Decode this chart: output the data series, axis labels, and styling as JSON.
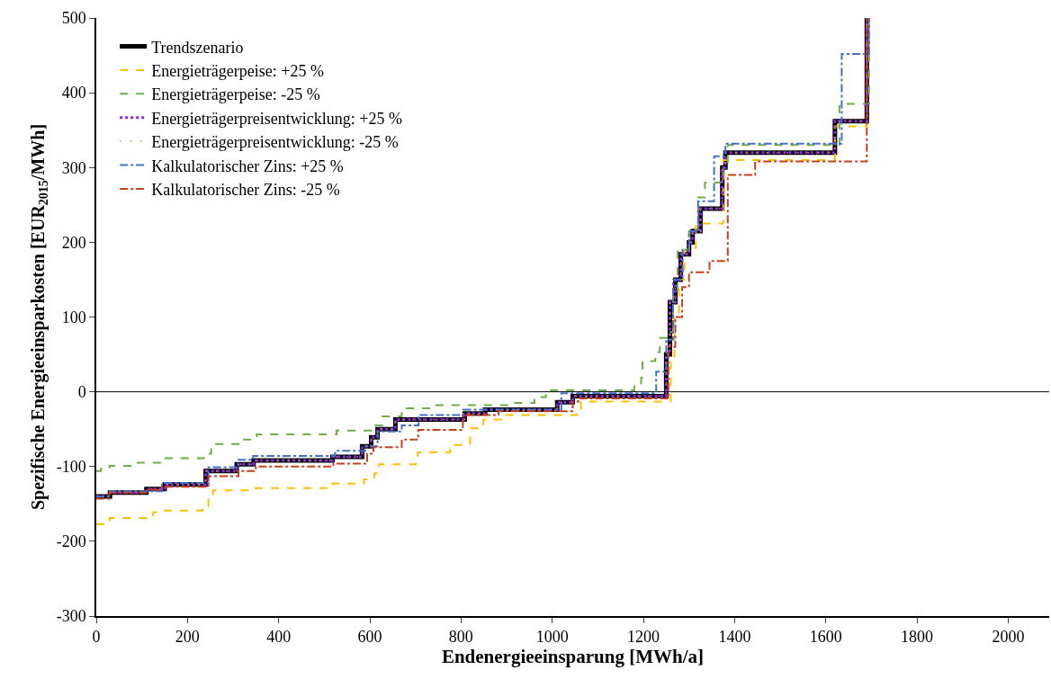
{
  "chart_data": {
    "type": "step",
    "xlabel": "Endenergieeinsparung [MWh/a]",
    "ylabel": "Spezifische Energieeinsparkosten [EUR$_{2015}$/MWh]",
    "xlim": [
      0,
      2090
    ],
    "xticks": [
      0,
      200,
      400,
      600,
      800,
      1000,
      1200,
      1400,
      1600,
      1800,
      2000
    ],
    "ylim": [
      -300,
      500
    ],
    "yticks": [
      -300,
      -200,
      -100,
      0,
      100,
      200,
      300,
      400,
      500
    ],
    "grid": false,
    "legend": "top left",
    "ref_lines": [
      {
        "axis": "y",
        "value": 0,
        "color": "#000000",
        "line_style": "solid"
      }
    ],
    "series": [
      {
        "name": "Trendszenario",
        "color": "#000000",
        "line_style": "solid",
        "x": [
          0,
          30,
          110,
          150,
          240,
          308,
          345,
          518,
          583,
          603,
          617,
          656,
          808,
          853,
          1011,
          1045,
          1250,
          1258,
          1270,
          1282,
          1300,
          1308,
          1325,
          1373,
          1380,
          1620,
          1690
        ],
        "values": [
          -140,
          -135,
          -130,
          -124,
          -106,
          -97,
          -92,
          -87,
          -73,
          -61,
          -50,
          -37,
          -29,
          -24,
          -14,
          -6,
          50,
          120,
          150,
          184,
          200,
          215,
          245,
          300,
          320,
          362,
          500
        ]
      },
      {
        "name": "Energieträgerpeise: +25 %",
        "color": "#ffc000",
        "line_style": "dashed",
        "x": [
          0,
          29,
          110,
          125,
          144,
          233,
          246,
          256,
          344,
          518,
          587,
          610,
          620,
          701,
          705,
          776,
          820,
          849,
          889,
          1054,
          1063,
          1260,
          1268,
          1278,
          1290,
          1315,
          1375,
          1620,
          1690
        ],
        "values": [
          -177,
          -169,
          -165,
          -161,
          -159,
          -153,
          -141,
          -132,
          -129,
          -123,
          -117,
          -109,
          -97,
          -86,
          -81,
          -71,
          -49,
          -37,
          -31,
          -25,
          -13,
          40,
          100,
          150,
          190,
          225,
          310,
          355,
          500
        ]
      },
      {
        "name": "Energieträgerpeise: -25 %",
        "color": "#70ad47",
        "line_style": "dashed",
        "x": [
          0,
          10,
          29,
          91,
          147,
          236,
          252,
          258,
          312,
          352,
          527,
          603,
          628,
          670,
          746,
          909,
          961,
          971,
          986,
          1180,
          1195,
          1198,
          1226,
          1236,
          1255,
          1265,
          1275,
          1300,
          1320,
          1335,
          1375,
          1385,
          1630,
          1695
        ],
        "values": [
          -106,
          -103,
          -99,
          -95,
          -89,
          -83,
          -75,
          -70,
          -64,
          -57,
          -52,
          -45,
          -33,
          -22,
          -18,
          -15,
          -11,
          -7,
          2,
          7,
          19,
          41,
          53,
          72,
          80,
          130,
          190,
          215,
          260,
          280,
          300,
          330,
          385,
          500
        ]
      },
      {
        "name": "Energieträgerpreisentwicklung: +25 %",
        "color": "#8a2be2",
        "line_style": "dotted",
        "x": [
          0,
          30,
          110,
          150,
          240,
          308,
          345,
          518,
          583,
          603,
          617,
          656,
          808,
          853,
          1011,
          1045,
          1250,
          1258,
          1270,
          1282,
          1300,
          1308,
          1325,
          1373,
          1380,
          1620,
          1690
        ],
        "values": [
          -140,
          -135,
          -130,
          -124,
          -106,
          -97,
          -92,
          -87,
          -73,
          -61,
          -50,
          -37,
          -29,
          -24,
          -14,
          -6,
          50,
          120,
          150,
          184,
          200,
          215,
          245,
          300,
          320,
          362,
          500
        ]
      },
      {
        "name": "Energieträgerpreisentwicklung: -25 %",
        "color": "#f4894b",
        "line_style": "dotted",
        "x": [
          0,
          30,
          110,
          150,
          240,
          308,
          345,
          518,
          583,
          603,
          617,
          656,
          808,
          853,
          1011,
          1045,
          1250,
          1258,
          1270,
          1282,
          1300,
          1308,
          1325,
          1373,
          1380,
          1620,
          1690
        ],
        "values": [
          -140,
          -135,
          -130,
          -124,
          -106,
          -97,
          -92,
          -87,
          -73,
          -61,
          -50,
          -37,
          -29,
          -24,
          -14,
          -6,
          50,
          120,
          150,
          184,
          200,
          215,
          245,
          300,
          320,
          362,
          500
        ]
      },
      {
        "name": "Kalkulatorischer Zins: +25 %",
        "color": "#4472c4",
        "line_style": "dashdot",
        "x": [
          0,
          30,
          144,
          246,
          312,
          344,
          524,
          590,
          617,
          670,
          707,
          805,
          1020,
          1228,
          1250,
          1265,
          1286,
          1300,
          1320,
          1355,
          1380,
          1635,
          1695
        ],
        "values": [
          -140,
          -133,
          -122,
          -101,
          -91,
          -86,
          -79,
          -73,
          -53,
          -45,
          -31,
          -24,
          -2,
          27,
          70,
          150,
          190,
          215,
          255,
          315,
          332,
          452,
          500
        ]
      },
      {
        "name": "Kalkulatorischer Zins: -25 %",
        "color": "#c9411c",
        "line_style": "dashdot",
        "x": [
          0,
          29,
          110,
          144,
          246,
          312,
          350,
          520,
          594,
          608,
          670,
          706,
          804,
          882,
          1045,
          1057,
          1255,
          1270,
          1285,
          1300,
          1345,
          1385,
          1445,
          1690
        ],
        "values": [
          -143,
          -135,
          -131,
          -127,
          -113,
          -106,
          -100,
          -96,
          -83,
          -74,
          -64,
          -51,
          -31,
          -26,
          -13,
          -9,
          60,
          100,
          140,
          160,
          175,
          290,
          308,
          500
        ]
      }
    ]
  }
}
